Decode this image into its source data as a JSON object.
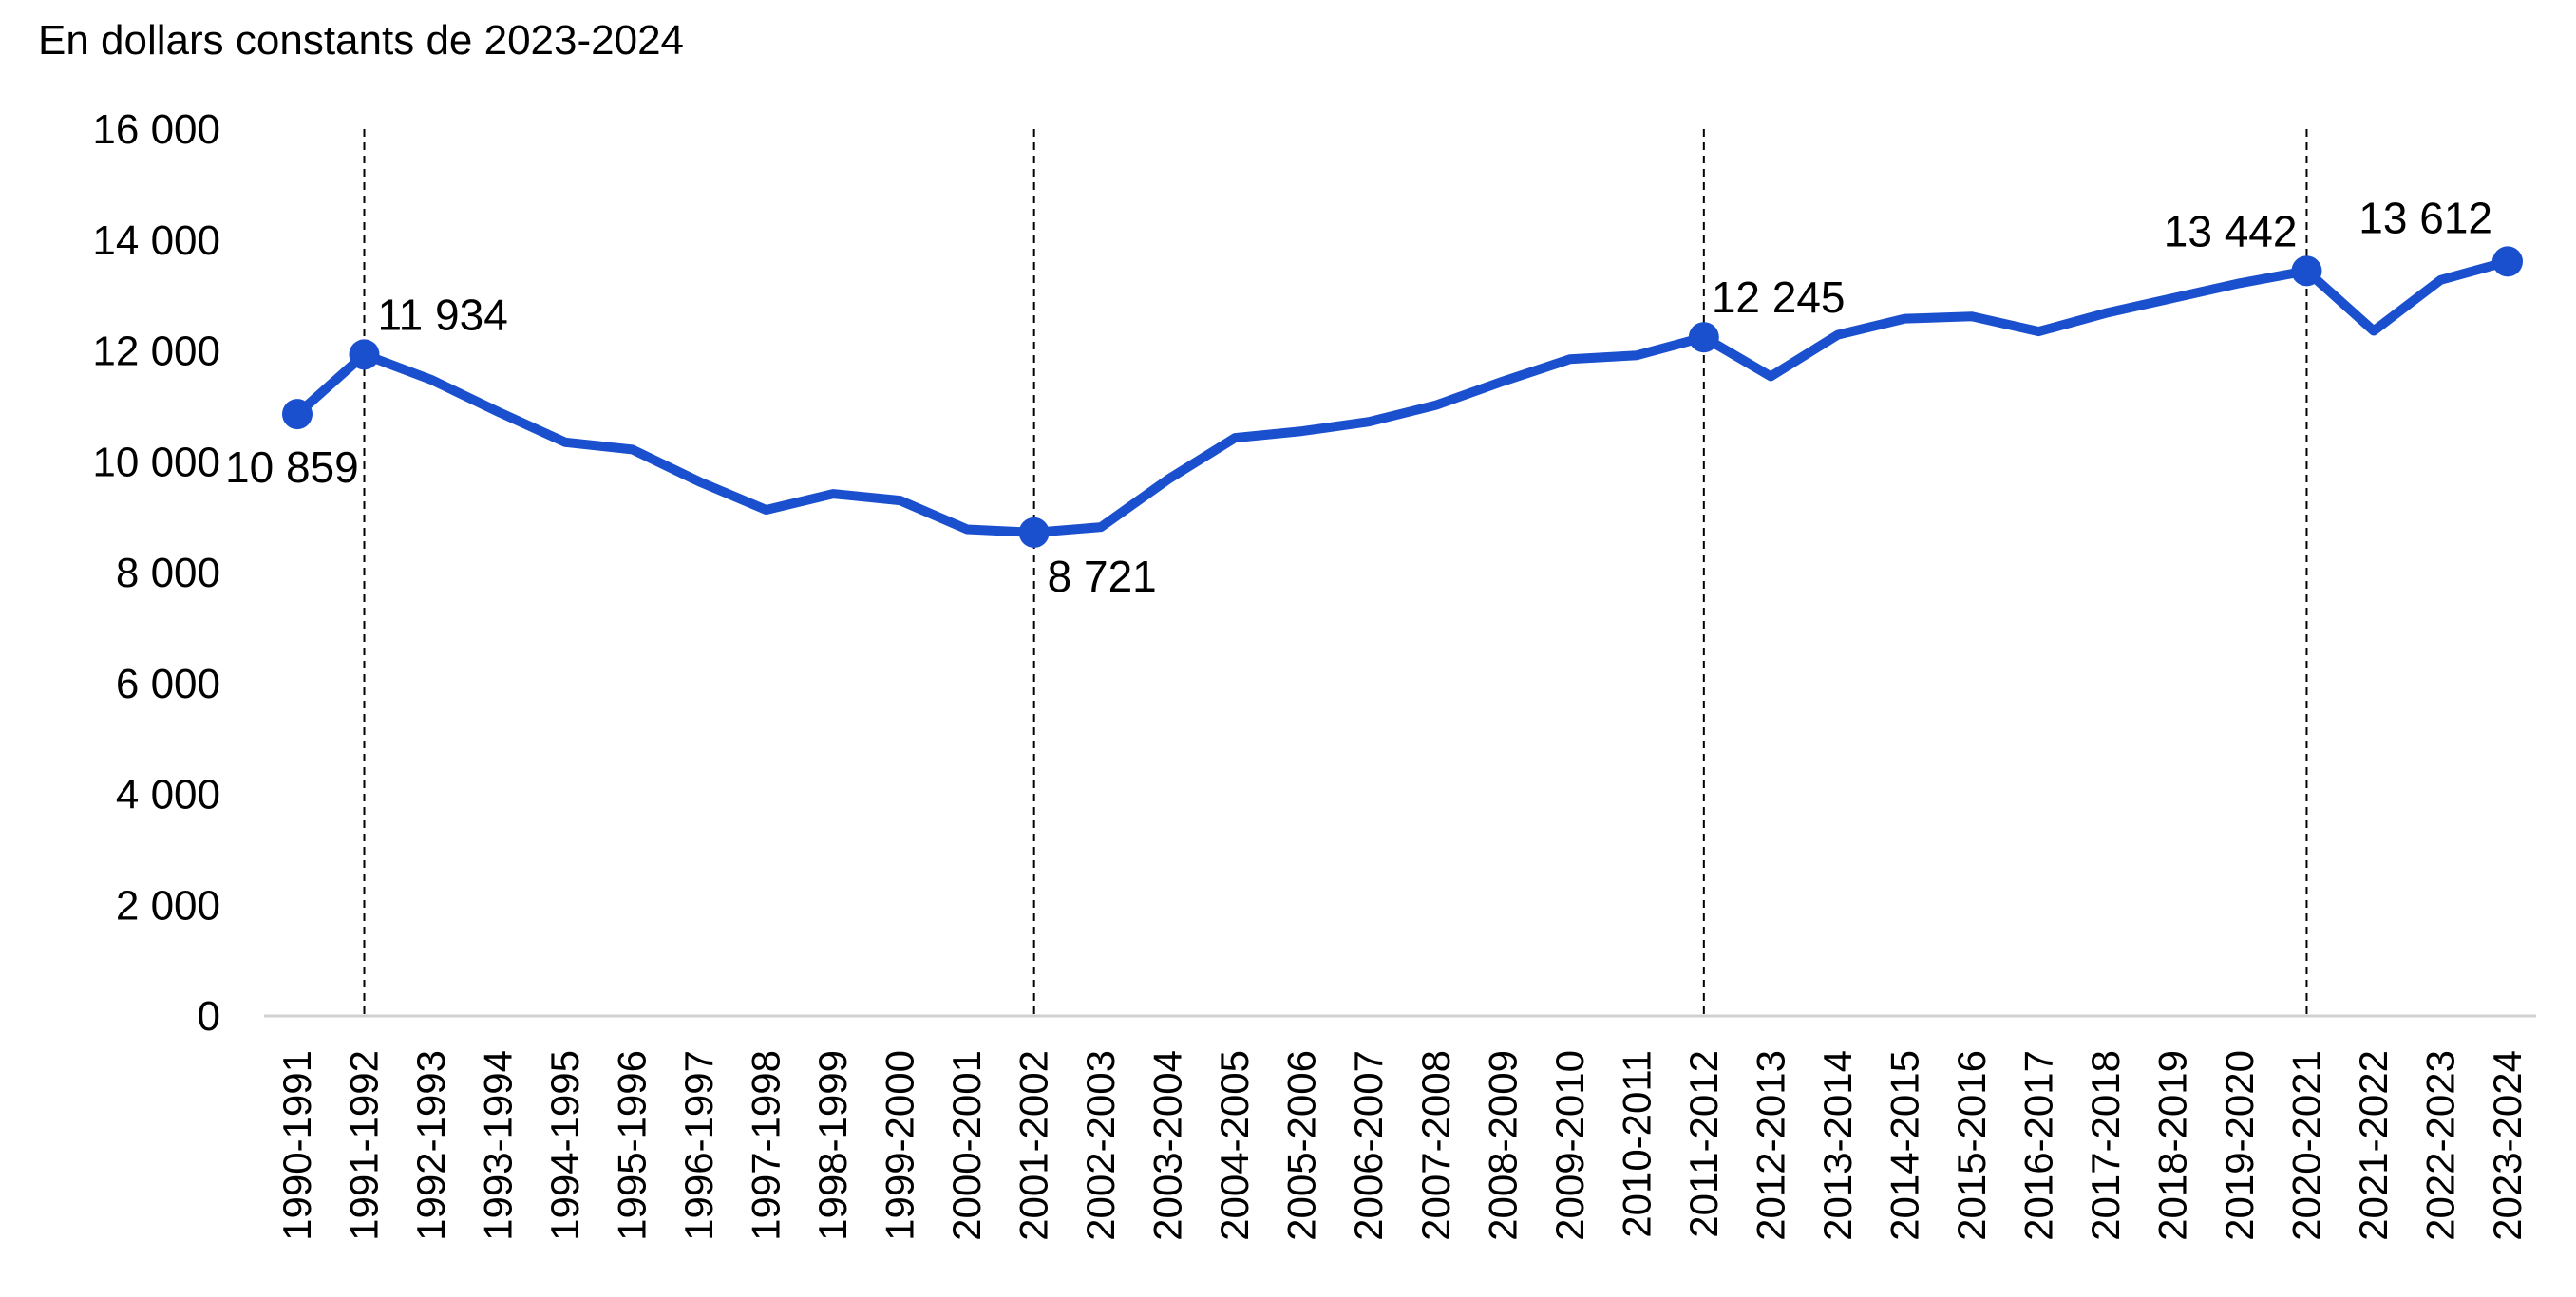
{
  "chart_data": {
    "type": "line",
    "subtitle": "En dollars constants de 2023-2024",
    "ylim": [
      0,
      16000
    ],
    "yticks": [
      "0",
      "2 000",
      "4 000",
      "6 000",
      "8 000",
      "10 000",
      "12 000",
      "14 000",
      "16 000"
    ],
    "grid": false,
    "categories": [
      "1990-1991",
      "1991-1992",
      "1992-1993",
      "1993-1994",
      "1994-1995",
      "1995-1996",
      "1996-1997",
      "1997-1998",
      "1998-1999",
      "1999-2000",
      "2000-2001",
      "2001-2002",
      "2002-2003",
      "2003-2004",
      "2004-2005",
      "2005-2006",
      "2006-2007",
      "2007-2008",
      "2008-2009",
      "2009-2010",
      "2010-2011",
      "2011-2012",
      "2012-2013",
      "2013-2014",
      "2014-2015",
      "2015-2016",
      "2016-2017",
      "2017-2018",
      "2018-2019",
      "2019-2020",
      "2020-2021",
      "2021-2022",
      "2022-2023",
      "2023-2024"
    ],
    "series": [
      {
        "values": [
          10859,
          11934,
          11480,
          10900,
          10350,
          10220,
          9640,
          9130,
          9420,
          9300,
          8780,
          8721,
          8820,
          9680,
          10430,
          10550,
          10720,
          11020,
          11450,
          11850,
          11920,
          12245,
          11540,
          12290,
          12580,
          12620,
          12350,
          12680,
          12950,
          13220,
          13442,
          12360,
          13280,
          13612
        ],
        "color": "#1a4fce"
      }
    ],
    "highlighted_points": [
      {
        "category": "1990-1991",
        "label": "10 859"
      },
      {
        "category": "1991-1992",
        "label": "11 934"
      },
      {
        "category": "2001-2002",
        "label": "8 721"
      },
      {
        "category": "2011-2012",
        "label": "12 245"
      },
      {
        "category": "2020-2021",
        "label": "13 442"
      },
      {
        "category": "2023-2024",
        "label": "13 612"
      }
    ],
    "reference_lines": [
      "1991-1992",
      "2001-2002",
      "2011-2012",
      "2020-2021"
    ]
  }
}
